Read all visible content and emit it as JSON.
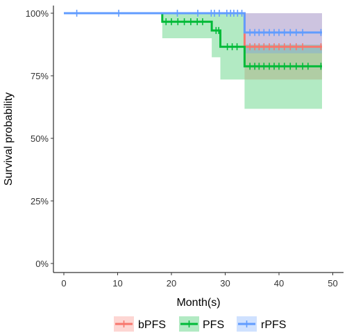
{
  "chart_data": {
    "type": "line",
    "title": "",
    "xlabel": "Month(s)",
    "ylabel": "Survival probability",
    "xlim": [
      0,
      50
    ],
    "ylim": [
      0,
      1
    ],
    "x_ticks": [
      0,
      10,
      20,
      30,
      40,
      50
    ],
    "x_tick_labels": [
      "0",
      "10",
      "20",
      "30",
      "40",
      "50"
    ],
    "y_ticks": [
      0,
      0.25,
      0.5,
      0.75,
      1
    ],
    "y_tick_labels": [
      "0%",
      "25%",
      "50%",
      "75%",
      "100%"
    ],
    "grid": false,
    "legend_position": "bottom",
    "series": [
      {
        "name": "bPFS",
        "color": "#F8766D",
        "steps": [
          [
            0,
            1.0
          ],
          [
            33.6,
            0.866
          ],
          [
            48,
            0.866
          ]
        ],
        "ci": [
          [
            0,
            1.0,
            1.0
          ],
          [
            33.6,
            0.735,
            1.0
          ],
          [
            48,
            0.735,
            1.0
          ]
        ],
        "censors": [
          [
            34.6,
            0.866
          ],
          [
            35.5,
            0.866
          ],
          [
            36.3,
            0.866
          ],
          [
            37.2,
            0.866
          ],
          [
            38.2,
            0.866
          ],
          [
            39.1,
            0.866
          ],
          [
            40.0,
            0.866
          ],
          [
            41.0,
            0.866
          ],
          [
            42.1,
            0.866
          ],
          [
            43.2,
            0.866
          ],
          [
            44.4,
            0.866
          ],
          [
            47.8,
            0.866
          ]
        ]
      },
      {
        "name": "PFS",
        "color": "#00BA38",
        "steps": [
          [
            0,
            1.0
          ],
          [
            18.3,
            0.966
          ],
          [
            27.5,
            0.931
          ],
          [
            29.1,
            0.866
          ],
          [
            33.6,
            0.788
          ],
          [
            48,
            0.788
          ]
        ],
        "ci": [
          [
            0,
            1.0,
            1.0
          ],
          [
            18.3,
            0.9,
            1.0
          ],
          [
            27.5,
            0.824,
            1.0
          ],
          [
            29.1,
            0.735,
            1.0
          ],
          [
            33.6,
            0.618,
            0.874
          ],
          [
            48,
            0.618,
            0.874
          ]
        ],
        "censors": [
          [
            19.0,
            0.966
          ],
          [
            20.0,
            0.966
          ],
          [
            21.2,
            0.966
          ],
          [
            22.4,
            0.966
          ],
          [
            23.6,
            0.966
          ],
          [
            24.8,
            0.966
          ],
          [
            25.8,
            0.966
          ],
          [
            28.3,
            0.931
          ],
          [
            28.8,
            0.931
          ],
          [
            30.4,
            0.866
          ],
          [
            31.3,
            0.866
          ],
          [
            32.2,
            0.866
          ],
          [
            34.6,
            0.788
          ],
          [
            35.5,
            0.788
          ],
          [
            36.3,
            0.788
          ],
          [
            37.2,
            0.788
          ],
          [
            38.2,
            0.788
          ],
          [
            39.1,
            0.788
          ],
          [
            40.0,
            0.788
          ],
          [
            41.0,
            0.788
          ],
          [
            42.1,
            0.788
          ],
          [
            43.2,
            0.788
          ],
          [
            44.4,
            0.788
          ],
          [
            45.4,
            0.788
          ],
          [
            47.8,
            0.788
          ]
        ]
      },
      {
        "name": "rPFS",
        "color": "#619CFF",
        "steps": [
          [
            0,
            1.0
          ],
          [
            33.6,
            0.923
          ],
          [
            48,
            0.923
          ]
        ],
        "ci": [
          [
            0,
            1.0,
            1.0
          ],
          [
            33.6,
            0.84,
            1.0
          ],
          [
            48,
            0.84,
            1.0
          ]
        ],
        "censors": [
          [
            2.4,
            1.0
          ],
          [
            10.2,
            1.0
          ],
          [
            21.1,
            1.0
          ],
          [
            24.9,
            1.0
          ],
          [
            27.4,
            1.0
          ],
          [
            28.0,
            1.0
          ],
          [
            28.9,
            1.0
          ],
          [
            30.3,
            1.0
          ],
          [
            31.0,
            1.0
          ],
          [
            31.6,
            1.0
          ],
          [
            32.3,
            1.0
          ],
          [
            33.1,
            1.0
          ],
          [
            34.6,
            0.923
          ],
          [
            35.5,
            0.923
          ],
          [
            36.3,
            0.923
          ],
          [
            37.2,
            0.923
          ],
          [
            38.2,
            0.923
          ],
          [
            39.1,
            0.923
          ],
          [
            40.0,
            0.923
          ],
          [
            41.0,
            0.923
          ],
          [
            42.1,
            0.923
          ],
          [
            43.2,
            0.923
          ],
          [
            44.4,
            0.923
          ],
          [
            47.8,
            0.923
          ]
        ]
      }
    ]
  }
}
